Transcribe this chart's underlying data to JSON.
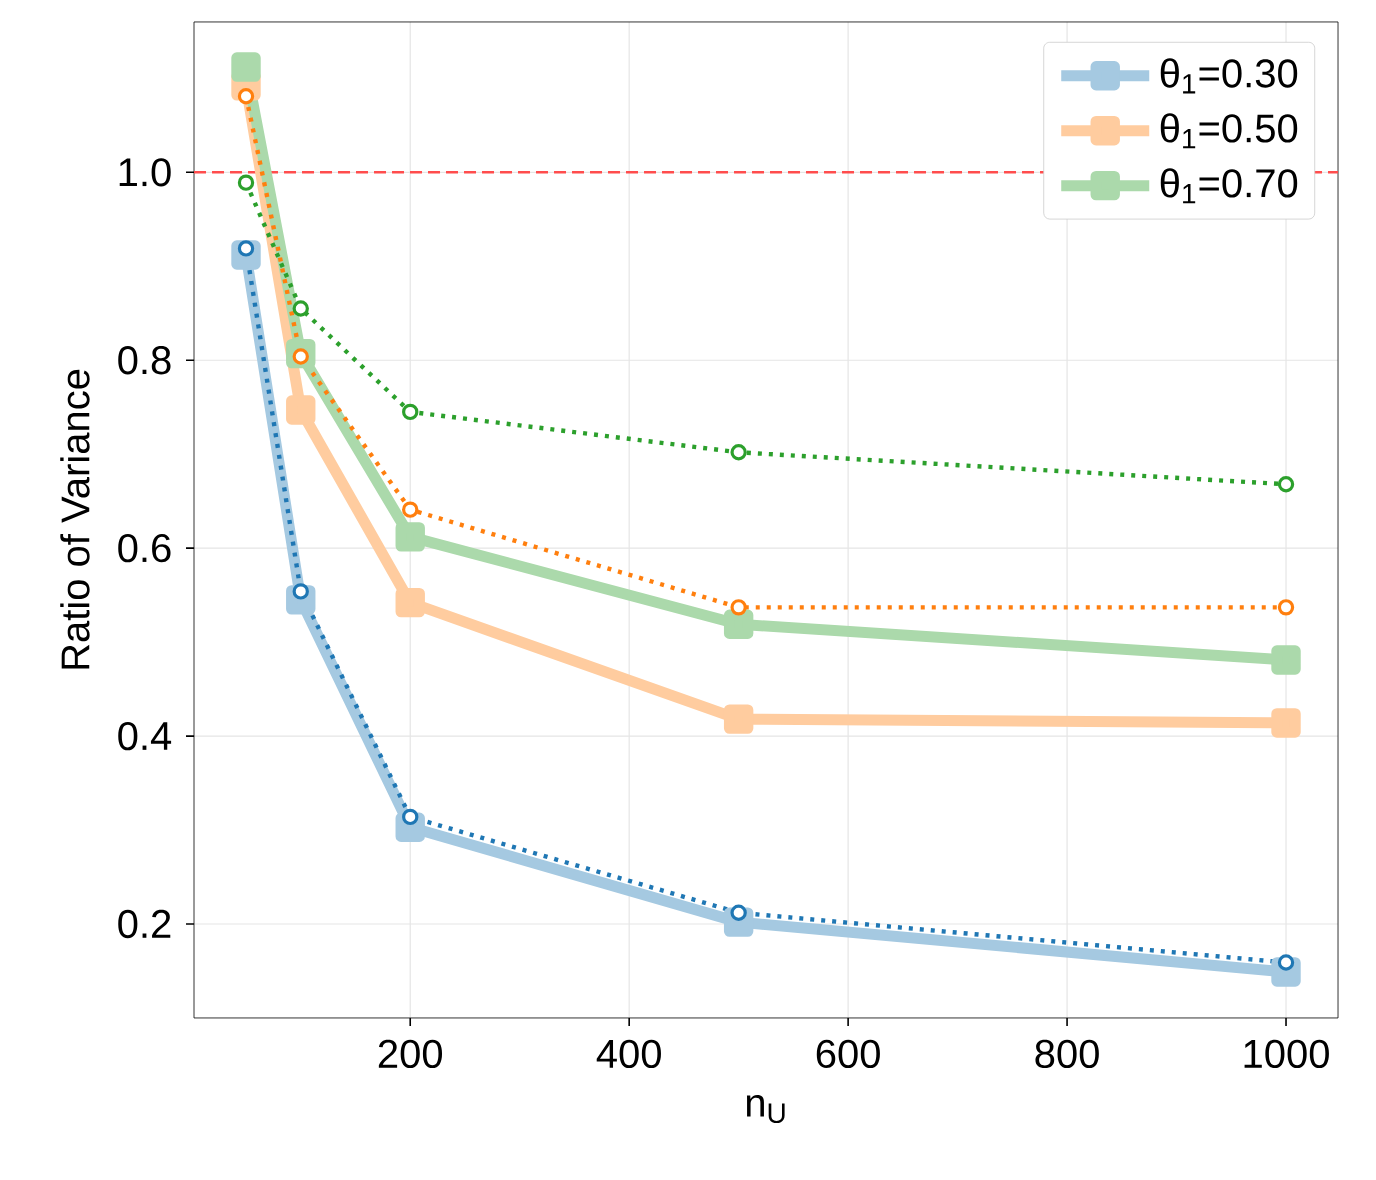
{
  "chart_data": {
    "type": "line",
    "xlabel": "n$_{U}$",
    "ylabel": "Ratio of Variance",
    "x": [
      50,
      100,
      200,
      500,
      1000
    ],
    "series": [
      {
        "name": "θ$_{1}$=0.30",
        "color": "#a5c9e1",
        "marker": "square",
        "line_style": "solid",
        "values": [
          0.912,
          0.545,
          0.303,
          0.202,
          0.149
        ]
      },
      {
        "name": "θ$_{1}$=0.50",
        "color": "#ffcc9f",
        "marker": "square",
        "line_style": "solid",
        "values": [
          1.092,
          0.747,
          0.542,
          0.418,
          0.414
        ]
      },
      {
        "name": "θ$_{1}$=0.70",
        "color": "#abd9ab",
        "marker": "square",
        "line_style": "solid",
        "values": [
          1.112,
          0.807,
          0.612,
          0.519,
          0.481
        ]
      },
      {
        "color": "#1f77b4",
        "marker": "circle",
        "line_style": "dotted",
        "values": [
          0.919,
          0.554,
          0.314,
          0.212,
          0.159
        ]
      },
      {
        "color": "#ff7f0e",
        "marker": "circle",
        "line_style": "dotted",
        "values": [
          1.081,
          0.804,
          0.641,
          0.537,
          0.537
        ]
      },
      {
        "color": "#2ca02c",
        "marker": "circle",
        "line_style": "dotted",
        "values": [
          0.989,
          0.855,
          0.745,
          0.702,
          0.668
        ]
      }
    ],
    "xlim": [
      2.5,
      1047.5
    ],
    "ylim": [
      0.1,
      1.16
    ],
    "xticks": [
      200,
      400,
      600,
      800,
      1000
    ],
    "yticks": [
      0.2,
      0.4,
      0.6,
      0.8,
      {
        "value": 1.0,
        "label": "1.0"
      }
    ],
    "ref_lines": [
      {
        "axis": "y",
        "value": 1.0,
        "color": "#ff4d4d",
        "line_style": "dashed"
      }
    ],
    "grid": true,
    "legend": "top right"
  }
}
